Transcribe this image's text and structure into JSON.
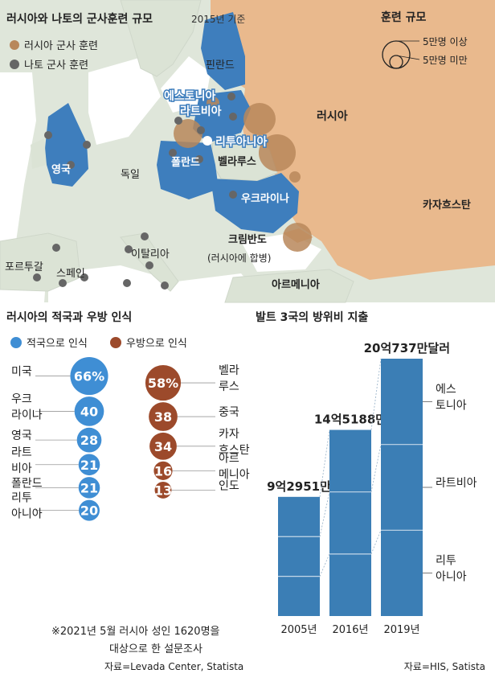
{
  "map": {
    "title": "러시아와 나토의 군사훈련 규모",
    "subtitle": "2015년 기준",
    "legend": {
      "russia_label": "러시아 군사 훈련",
      "nato_label": "나토 군사 훈련",
      "scale_title": "훈련 규모",
      "large_label": "5만명 이상",
      "small_label": "5만명 미만"
    },
    "labels": {
      "russia": "러시아",
      "finland": "핀란드",
      "estonia": "에스토니아",
      "latvia": "라트비아",
      "lithuania": "리투아니아",
      "belarus": "벨라루스",
      "poland": "폴란드",
      "ukraine": "우크라이나",
      "uk": "영국",
      "germany": "독일",
      "kazakhstan": "카자흐스탄",
      "crimea": "크림반도",
      "crimea_note": "(러시아에 합병)",
      "italy": "이탈리아",
      "portugal": "포르투갈",
      "spain": "스페인",
      "armenia": "아르메니아"
    },
    "colors": {
      "russia_land": "#e8b98c",
      "nato_blue": "#3f7fbf",
      "other_land": "#dbe3d5",
      "sea": "#ffffff",
      "russia_circle": "#b8875a",
      "nato_dot": "#666666"
    }
  },
  "perception": {
    "title": "러시아의 적국과 우방 인식",
    "legend_enemy": "적국으로 인식",
    "legend_friend": "우방으로 인식",
    "colors": {
      "enemy": "#3f8ed4",
      "friend": "#9c4a2b"
    },
    "footnote_line1": "※2021년 5월 러시아 성인 1620명을",
    "footnote_line2": "대상으로 한 설문조사",
    "source": "자료=Levada Center, Statista"
  },
  "defense": {
    "title": "발트 3국의 방위비 지출",
    "source": "자료=HIS, Satista",
    "bar_color": "#3b7eb5",
    "segment_labels": [
      "에스 토니아",
      "라트비아",
      "리투 아니아"
    ]
  },
  "chart_data": [
    {
      "type": "scatter",
      "title": "러시아의 적국과 우방 인식",
      "unit": "%",
      "series": [
        {
          "name": "적국으로 인식",
          "categories": [
            "미국",
            "우크 라이나",
            "영국",
            "라트 비아",
            "폴란드",
            "리투 아니아"
          ],
          "values": [
            66,
            40,
            28,
            21,
            21,
            20
          ],
          "value_labels": [
            "66%",
            "40",
            "28",
            "21",
            "21",
            "20"
          ]
        },
        {
          "name": "우방으로 인식",
          "categories": [
            "벨라 루스",
            "중국",
            "카자 흐스탄",
            "아르 메니아",
            "인도"
          ],
          "values": [
            58,
            38,
            34,
            16,
            13
          ],
          "value_labels": [
            "58%",
            "38",
            "34",
            "16",
            "13"
          ]
        }
      ]
    },
    {
      "type": "bar",
      "title": "발트 3국의 방위비 지출",
      "categories": [
        "2005년",
        "2016년",
        "2019년"
      ],
      "values": [
        929510000,
        1451880000,
        2007370000
      ],
      "value_labels": [
        "9억2951만",
        "14억5188만",
        "20억737만달러"
      ],
      "stack_order": [
        "리투아니아",
        "라트비아",
        "에스토니아"
      ]
    }
  ]
}
